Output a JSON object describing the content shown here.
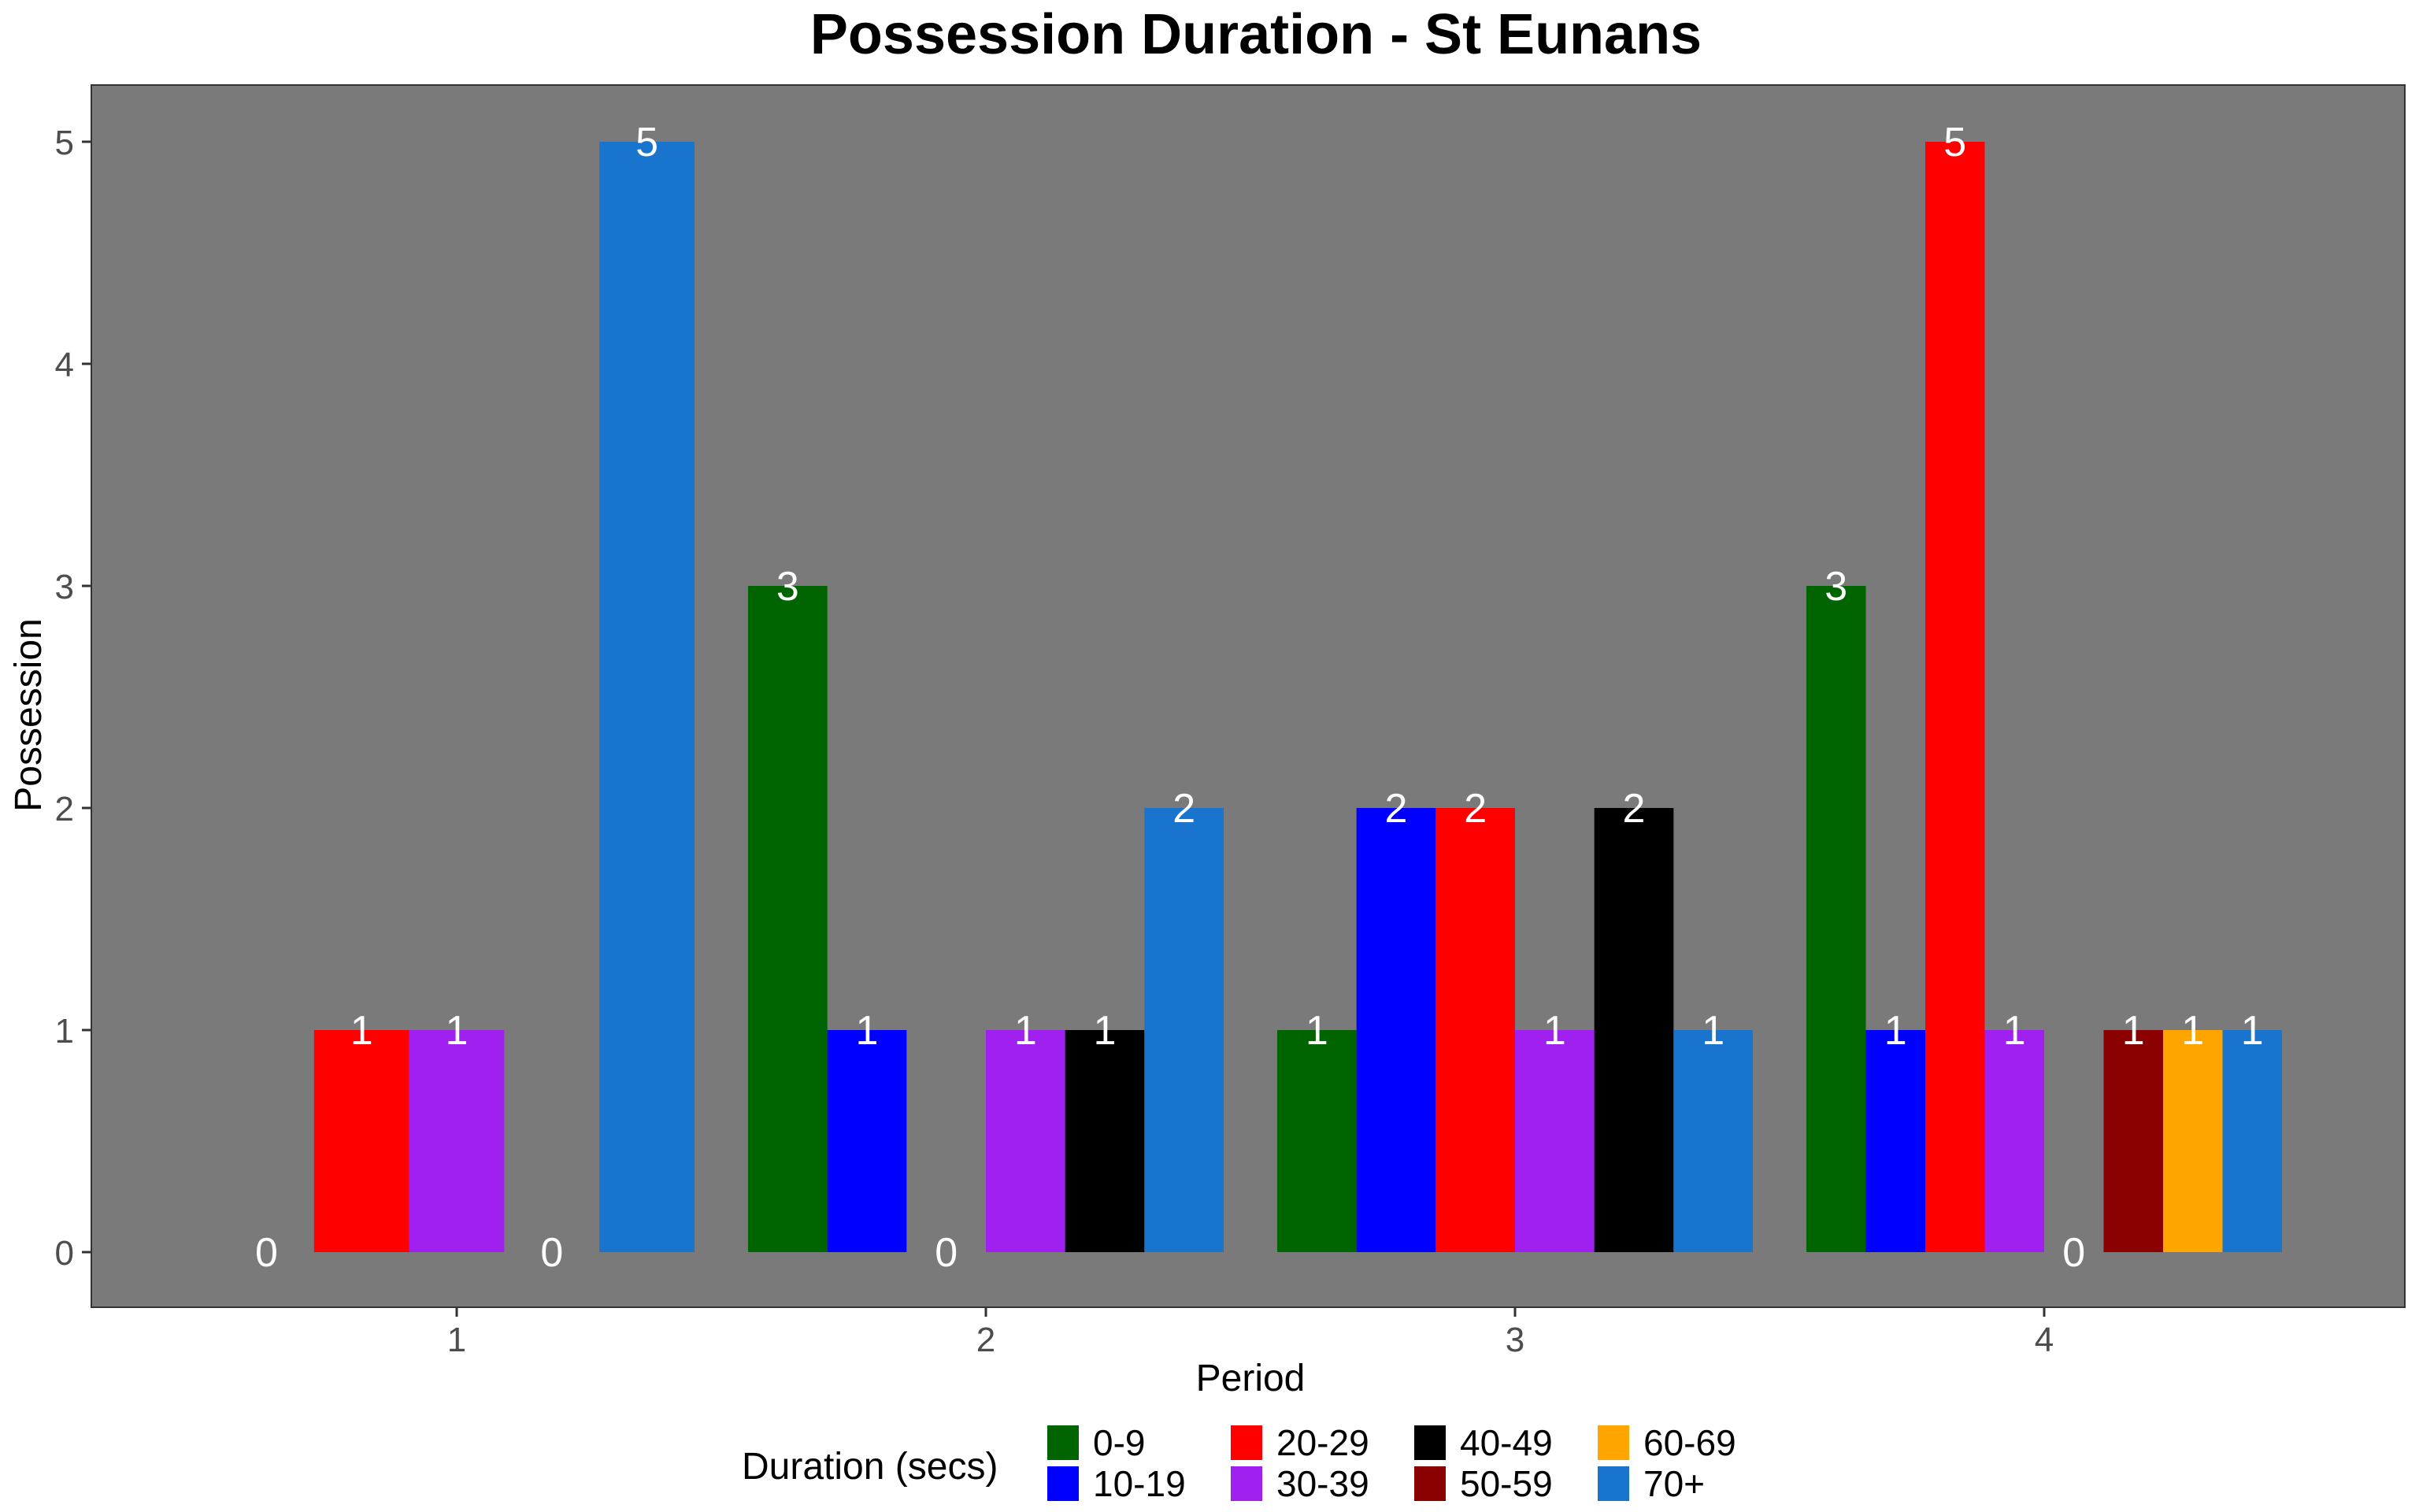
{
  "chart_data": {
    "type": "bar",
    "title": "Possession Duration - St Eunans",
    "xlabel": "Period",
    "ylabel": "Possession",
    "ylim": [
      0,
      5
    ],
    "yticks": [
      0,
      1,
      2,
      3,
      4,
      5
    ],
    "grid": false,
    "legend_position": "bottom",
    "legend_title": "Duration (secs)",
    "panel_color": "#7a7a7a",
    "label_color": "#ffffff",
    "legend": [
      {
        "name": "0-9",
        "color": "#006400"
      },
      {
        "name": "10-19",
        "color": "#0000ff"
      },
      {
        "name": "20-29",
        "color": "#ff0000"
      },
      {
        "name": "30-39",
        "color": "#a020f0"
      },
      {
        "name": "40-49",
        "color": "#000000"
      },
      {
        "name": "50-59",
        "color": "#8b0000"
      },
      {
        "name": "60-69",
        "color": "#ffa500"
      },
      {
        "name": "70+",
        "color": "#1874cd"
      }
    ],
    "periods": [
      {
        "label": "1",
        "bars": [
          {
            "category": "",
            "value": 0
          },
          {
            "category": "20-29",
            "value": 1
          },
          {
            "category": "30-39",
            "value": 1
          },
          {
            "category": "",
            "value": 0
          },
          {
            "category": "70+",
            "value": 5
          }
        ]
      },
      {
        "label": "2",
        "bars": [
          {
            "category": "0-9",
            "value": 3
          },
          {
            "category": "10-19",
            "value": 1
          },
          {
            "category": "",
            "value": 0
          },
          {
            "category": "30-39",
            "value": 1
          },
          {
            "category": "40-49",
            "value": 1
          },
          {
            "category": "70+",
            "value": 2
          }
        ]
      },
      {
        "label": "3",
        "bars": [
          {
            "category": "0-9",
            "value": 1
          },
          {
            "category": "10-19",
            "value": 2
          },
          {
            "category": "20-29",
            "value": 2
          },
          {
            "category": "30-39",
            "value": 1
          },
          {
            "category": "40-49",
            "value": 2
          },
          {
            "category": "70+",
            "value": 1
          }
        ]
      },
      {
        "label": "4",
        "bars": [
          {
            "category": "0-9",
            "value": 3
          },
          {
            "category": "10-19",
            "value": 1
          },
          {
            "category": "20-29",
            "value": 5
          },
          {
            "category": "30-39",
            "value": 1
          },
          {
            "category": "",
            "value": 0
          },
          {
            "category": "50-59",
            "value": 1
          },
          {
            "category": "60-69",
            "value": 1
          },
          {
            "category": "70+",
            "value": 1
          }
        ]
      }
    ]
  }
}
